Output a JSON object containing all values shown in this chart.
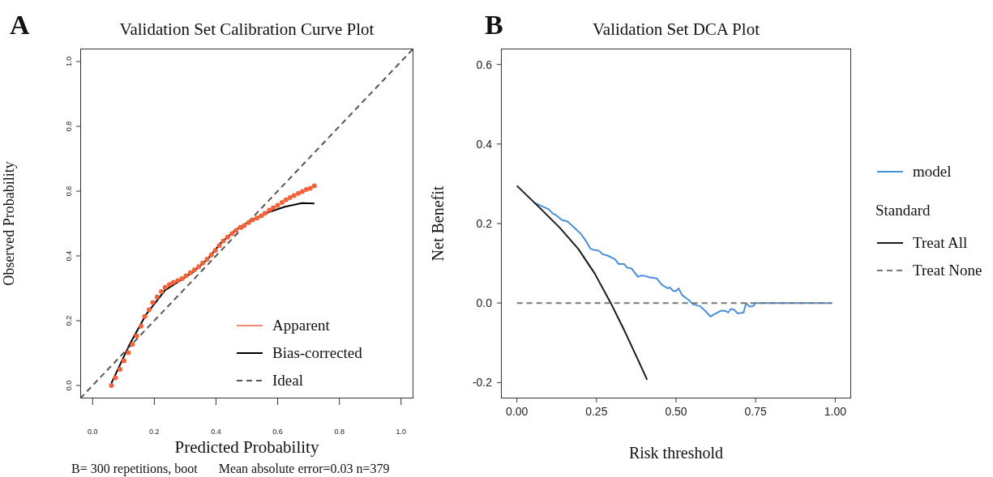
{
  "chart_data": [
    {
      "type": "line",
      "title": "Validation Set Calibration Curve Plot",
      "xlabel": "Predicted Probability",
      "ylabel": "Observed Probability",
      "annotations": [
        "A",
        "B= 300 repetitions, boot",
        "Mean absolute error=0.03 n=379"
      ],
      "xlim": [
        -0.04,
        1.04
      ],
      "ylim": [
        -0.04,
        1.04
      ],
      "xticks": [
        {
          "value": 0,
          "label": "0.0"
        },
        {
          "value": 0.2,
          "label": "0.2"
        },
        {
          "value": 0.4,
          "label": "0.4"
        },
        {
          "value": 0.6,
          "label": "0.6"
        },
        {
          "value": 0.8,
          "label": "0.8"
        },
        {
          "value": 1,
          "label": "1.0"
        }
      ],
      "yticks": [
        {
          "value": 0,
          "label": "0.0"
        },
        {
          "value": 0.2,
          "label": "0.2"
        },
        {
          "value": 0.4,
          "label": "0.4"
        },
        {
          "value": 0.6,
          "label": "0.6"
        },
        {
          "value": 0.8,
          "label": "0.8"
        },
        {
          "value": 1,
          "label": "1.0"
        }
      ],
      "grid": false,
      "legend": "bottom right",
      "series": [
        {
          "name": "Apparent",
          "type": "scatter",
          "marker": "circle",
          "color": "#f4623a",
          "x": [
            0.061,
            0.074,
            0.089,
            0.102,
            0.116,
            0.129,
            0.143,
            0.157,
            0.169,
            0.183,
            0.195,
            0.209,
            0.223,
            0.235,
            0.249,
            0.262,
            0.276,
            0.29,
            0.303,
            0.317,
            0.33,
            0.344,
            0.357,
            0.371,
            0.385,
            0.398,
            0.411,
            0.424,
            0.438,
            0.452,
            0.465,
            0.479,
            0.492,
            0.506,
            0.519,
            0.533,
            0.547,
            0.559,
            0.573,
            0.586,
            0.6,
            0.614,
            0.627,
            0.64,
            0.653,
            0.667,
            0.68,
            0.693,
            0.706,
            0.719
          ],
          "values": [
            0.0,
            0.024,
            0.05,
            0.076,
            0.101,
            0.127,
            0.153,
            0.183,
            0.213,
            0.234,
            0.256,
            0.273,
            0.29,
            0.303,
            0.312,
            0.318,
            0.324,
            0.33,
            0.339,
            0.348,
            0.357,
            0.367,
            0.378,
            0.39,
            0.403,
            0.417,
            0.432,
            0.446,
            0.458,
            0.469,
            0.479,
            0.488,
            0.494,
            0.503,
            0.511,
            0.517,
            0.524,
            0.532,
            0.541,
            0.549,
            0.556,
            0.565,
            0.573,
            0.58,
            0.586,
            0.593,
            0.599,
            0.605,
            0.609,
            0.616
          ]
        },
        {
          "name": "Bias-corrected",
          "type": "line",
          "color": "#000000",
          "line_style": "solid",
          "x": [
            0.061,
            0.118,
            0.172,
            0.235,
            0.271,
            0.326,
            0.371,
            0.416,
            0.462,
            0.498,
            0.561,
            0.624,
            0.679,
            0.719
          ],
          "values": [
            0.007,
            0.123,
            0.217,
            0.294,
            0.316,
            0.35,
            0.388,
            0.44,
            0.479,
            0.5,
            0.532,
            0.552,
            0.563,
            0.562
          ]
        },
        {
          "name": "Ideal",
          "type": "line",
          "color": "#555555",
          "line_style": "dashed",
          "x": [
            -0.04,
            1.04
          ],
          "values": [
            -0.04,
            1.04
          ]
        }
      ]
    },
    {
      "type": "line",
      "title": "Validation Set DCA Plot",
      "xlabel": "Risk threshold",
      "ylabel": "Net Benefit",
      "annotations": [
        "B"
      ],
      "legend_title": "Standard",
      "xlim": [
        -0.05,
        1.05
      ],
      "ylim": [
        -0.24,
        0.64
      ],
      "xticks": [
        {
          "value": 0,
          "label": "0.00"
        },
        {
          "value": 0.25,
          "label": "0.25"
        },
        {
          "value": 0.5,
          "label": "0.50"
        },
        {
          "value": 0.75,
          "label": "0.75"
        },
        {
          "value": 1,
          "label": "1.00"
        }
      ],
      "yticks": [
        {
          "value": -0.2,
          "label": "-0.2"
        },
        {
          "value": 0,
          "label": "0.0"
        },
        {
          "value": 0.2,
          "label": "0.2"
        },
        {
          "value": 0.4,
          "label": "0.4"
        },
        {
          "value": 0.6,
          "label": "0.6"
        }
      ],
      "grid": false,
      "legend": "right",
      "series": [
        {
          "name": "model",
          "type": "line",
          "color": "#4a90d9",
          "line_style": "solid",
          "x": [
            0.055,
            0.1,
            0.113,
            0.125,
            0.141,
            0.159,
            0.176,
            0.202,
            0.217,
            0.231,
            0.24,
            0.257,
            0.269,
            0.286,
            0.308,
            0.32,
            0.337,
            0.346,
            0.36,
            0.38,
            0.388,
            0.405,
            0.414,
            0.439,
            0.454,
            0.473,
            0.481,
            0.49,
            0.5,
            0.508,
            0.519,
            0.539,
            0.553,
            0.575,
            0.592,
            0.608,
            0.621,
            0.642,
            0.655,
            0.664,
            0.672,
            0.683,
            0.693,
            0.712,
            0.72,
            0.731,
            0.742,
            0.75,
            0.99
          ],
          "values": [
            0.252,
            0.236,
            0.225,
            0.22,
            0.209,
            0.205,
            0.193,
            0.173,
            0.156,
            0.137,
            0.134,
            0.132,
            0.123,
            0.119,
            0.11,
            0.098,
            0.098,
            0.089,
            0.087,
            0.066,
            0.069,
            0.068,
            0.065,
            0.062,
            0.047,
            0.037,
            0.039,
            0.031,
            0.03,
            0.037,
            0.02,
            0.008,
            -0.003,
            -0.008,
            -0.02,
            -0.034,
            -0.028,
            -0.019,
            -0.02,
            -0.024,
            -0.015,
            -0.017,
            -0.026,
            -0.024,
            0,
            -0.009,
            -0.008,
            0,
            0
          ]
        },
        {
          "name": "Treat All",
          "type": "line",
          "color": "#1a1a1a",
          "line_style": "solid",
          "x": [
            0,
            0.066,
            0.134,
            0.193,
            0.244,
            0.295,
            0.337,
            0.38,
            0.409
          ],
          "values": [
            0.295,
            0.244,
            0.19,
            0.136,
            0.075,
            0,
            -0.068,
            -0.142,
            -0.193
          ]
        },
        {
          "name": "Treat None",
          "type": "line",
          "color": "#777777",
          "line_style": "dashed",
          "x": [
            0,
            0.99
          ],
          "values": [
            0,
            0
          ]
        }
      ]
    }
  ]
}
